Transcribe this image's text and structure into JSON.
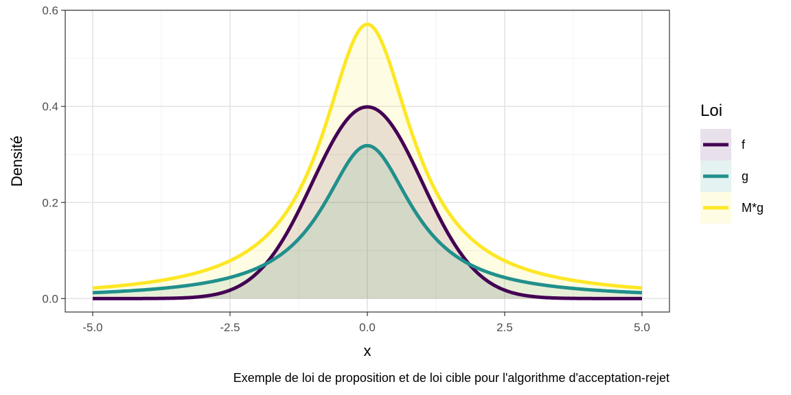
{
  "chart_data": {
    "type": "area",
    "title": "",
    "xlabel": "x",
    "ylabel": "Densité",
    "caption": "Exemple de loi de proposition et de loi cible pour l'algorithme d'acceptation-rejet",
    "xlim": [
      -5.5,
      5.5
    ],
    "ylim": [
      -0.028,
      0.6
    ],
    "x_ticks": [
      -5,
      -2.5,
      0,
      2.5,
      5
    ],
    "x_tick_labels": [
      "-5.0",
      "-2.5",
      "0.0",
      "2.5",
      "5.0"
    ],
    "y_ticks": [
      0,
      0.2,
      0.4,
      0.6
    ],
    "y_tick_labels": [
      "0.0",
      "0.2",
      "0.4",
      "0.6"
    ],
    "grid": true,
    "legend": {
      "title": "Loi",
      "position": "right",
      "entries": [
        {
          "label": "f",
          "color": "#440154"
        },
        {
          "label": "g",
          "color": "#21908C"
        },
        {
          "label": "M*g",
          "color": "#FDE725"
        }
      ]
    },
    "series": [
      {
        "name": "f",
        "color": "#440154",
        "x": [
          -5,
          -4.5,
          -4,
          -3.5,
          -3,
          -2.5,
          -2,
          -1.5,
          -1,
          -0.5,
          0,
          0.5,
          1,
          1.5,
          2,
          2.5,
          3,
          3.5,
          4,
          4.5,
          5
        ],
        "values": [
          1.5e-06,
          1.6e-05,
          0.000134,
          0.000873,
          0.00443,
          0.0175,
          0.054,
          0.1295,
          0.242,
          0.352,
          0.3989,
          0.352,
          0.242,
          0.1295,
          0.054,
          0.0175,
          0.00443,
          0.000873,
          0.000134,
          1.6e-05,
          1.5e-06
        ]
      },
      {
        "name": "g",
        "color": "#21908C",
        "x": [
          -5,
          -4.5,
          -4,
          -3.5,
          -3,
          -2.5,
          -2,
          -1.5,
          -1,
          -0.5,
          0,
          0.5,
          1,
          1.5,
          2,
          2.5,
          3,
          3.5,
          4,
          4.5,
          5
        ],
        "values": [
          0.01224,
          0.01496,
          0.01872,
          0.02417,
          0.03183,
          0.0439,
          0.06366,
          0.09794,
          0.15915,
          0.25465,
          0.31831,
          0.25465,
          0.15915,
          0.09794,
          0.06366,
          0.0439,
          0.03183,
          0.02417,
          0.01872,
          0.01496,
          0.01224
        ]
      },
      {
        "name": "M*g",
        "color": "#FDE725",
        "x": [
          -5,
          -4.5,
          -4,
          -3.5,
          -3,
          -2.5,
          -2,
          -1.5,
          -1,
          -0.5,
          0,
          0.5,
          1,
          1.5,
          2,
          2.5,
          3,
          3.5,
          4,
          4.5,
          5
        ],
        "values": [
          0.02195,
          0.02683,
          0.03357,
          0.04335,
          0.05709,
          0.07873,
          0.11417,
          0.17565,
          0.28543,
          0.45669,
          0.57087,
          0.45669,
          0.28543,
          0.17565,
          0.11417,
          0.07873,
          0.05709,
          0.04335,
          0.03357,
          0.02683,
          0.02195
        ]
      }
    ]
  }
}
